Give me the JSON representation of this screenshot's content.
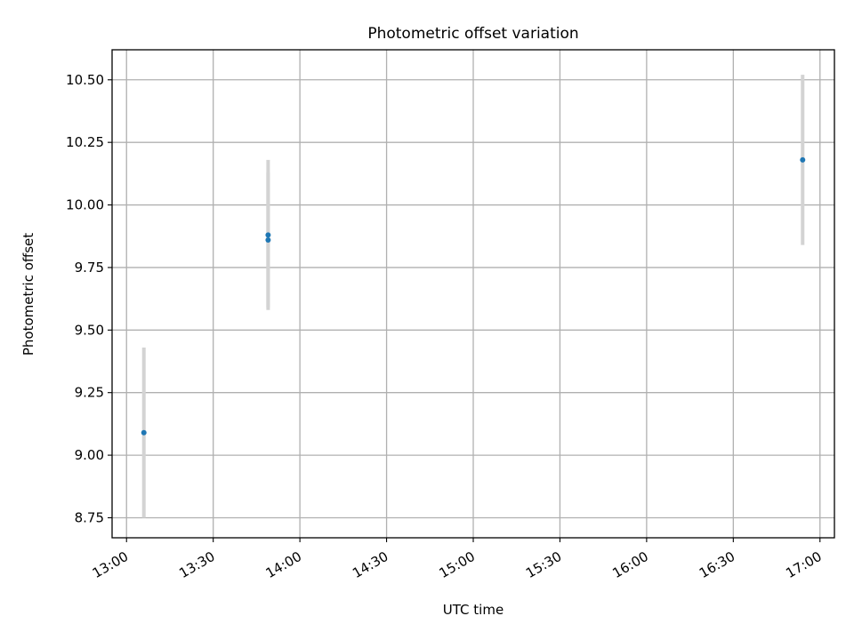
{
  "chart_data": {
    "type": "scatter",
    "title": "Photometric offset variation",
    "xlabel": "UTC time",
    "ylabel": "Photometric offset",
    "x_ticks": [
      "13:00",
      "13:30",
      "14:00",
      "14:30",
      "15:00",
      "15:30",
      "16:00",
      "16:30",
      "17:00"
    ],
    "y_ticks": [
      "8.75",
      "9.00",
      "9.25",
      "9.50",
      "9.75",
      "10.00",
      "10.25",
      "10.50"
    ],
    "xlim": [
      "12:55",
      "17:05"
    ],
    "ylim": [
      8.67,
      10.62
    ],
    "grid": true,
    "marker_color": "#1f77b4",
    "errorbar_color": "#d3d3d3",
    "points": [
      {
        "x": "13:06",
        "y": 9.09,
        "err": 0.34
      },
      {
        "x": "13:49",
        "y": 9.86,
        "err": 0.27
      },
      {
        "x": "13:49",
        "y": 9.88,
        "err": 0.3
      },
      {
        "x": "16:54",
        "y": 10.18,
        "err": 0.34
      }
    ]
  }
}
